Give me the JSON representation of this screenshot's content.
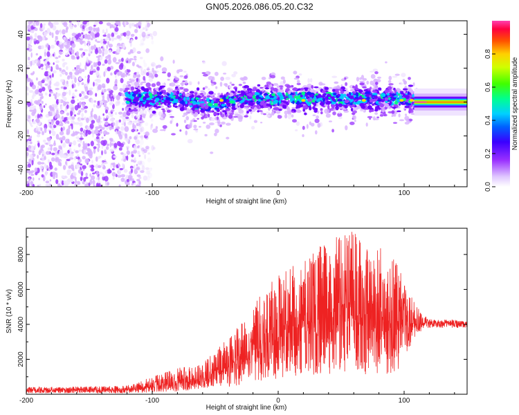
{
  "title": "GN05.2026.086.05.20.C32",
  "chart_data": [
    {
      "type": "heatmap",
      "panel": "spectrogram",
      "xlabel": "Height of straight line (km)",
      "ylabel": "Frequency (Hz)",
      "xlim": [
        -200,
        150
      ],
      "ylim": [
        -50,
        48
      ],
      "xticks": [
        -200,
        -100,
        0,
        100
      ],
      "yticks": [
        -40,
        -20,
        0,
        20,
        40
      ],
      "colorbar": {
        "label": "Normalized spectral amplitude",
        "range": [
          0,
          1
        ],
        "ticks": [
          0.0,
          0.2,
          0.4,
          0.6,
          0.8
        ],
        "colors": [
          "#f0e4ff",
          "#d8b2ff",
          "#a040ff",
          "#6a00ff",
          "#1a1aff",
          "#00c8ff",
          "#00ff80",
          "#b0ff00",
          "#ffe000",
          "#ff8000",
          "#ff0040",
          "#ff40a0"
        ]
      },
      "features": [
        {
          "name": "diffuse noise speckle",
          "x_range": [
            -200,
            -95
          ],
          "freq_range": [
            -50,
            48
          ],
          "amplitude": 0.12
        },
        {
          "name": "signal band",
          "x_range": [
            -120,
            110
          ],
          "center_freq_hz": 2,
          "half_width_hz": 6,
          "amplitude_range": [
            0.2,
            0.55
          ]
        },
        {
          "name": "steady tone",
          "x_range": [
            108,
            150
          ],
          "center_freq_hz": 0,
          "amplitude_range": [
            0.6,
            0.9
          ]
        }
      ]
    },
    {
      "type": "line",
      "panel": "snr",
      "xlabel": "Height of straight line (km)",
      "ylabel": "SNR (10 * v/v)",
      "xlim": [
        -200,
        150
      ],
      "ylim": [
        0,
        9500
      ],
      "xticks": [
        -200,
        -100,
        0,
        100
      ],
      "yticks": [
        2000,
        4000,
        6000,
        8000
      ],
      "series": [
        {
          "name": "SNR",
          "color": "#ee2222",
          "envelope": {
            "x": [
              -200,
              -120,
              -80,
              -60,
              -40,
              -20,
              -10,
              0,
              20,
              40,
              50,
              60,
              70,
              80,
              90,
              100,
              110,
              120,
              150
            ],
            "median": [
              200,
              260,
              600,
              900,
              1600,
              2600,
              3000,
              3400,
              4000,
              4300,
              4500,
              4500,
              4400,
              4200,
              4100,
              4000,
              4000,
              4100,
              4000
            ],
            "peak": [
              400,
              500,
              1500,
              1800,
              3200,
              5000,
              6200,
              6800,
              7800,
              8800,
              9100,
              9400,
              8500,
              8600,
              8400,
              6400,
              5000,
              4300,
              4250
            ],
            "trough": [
              50,
              60,
              150,
              300,
              400,
              700,
              800,
              900,
              1100,
              1100,
              1200,
              1200,
              1000,
              900,
              1000,
              1800,
              3500,
              3800,
              3800
            ]
          }
        }
      ]
    }
  ]
}
